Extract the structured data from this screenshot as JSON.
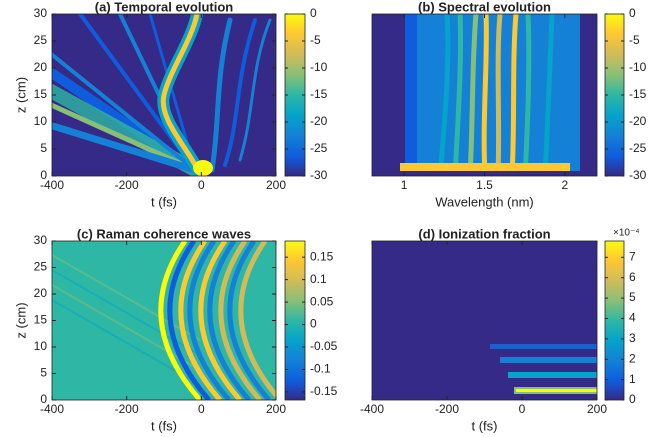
{
  "chart_data": [
    {
      "type": "heatmap",
      "title": "(a) Temporal evolution",
      "xlabel": "t (fs)",
      "ylabel": "z (cm)",
      "xlim": [
        -400,
        200
      ],
      "xticks": [
        -400,
        -200,
        0,
        200
      ],
      "ylim": [
        0,
        30
      ],
      "yticks": [
        0,
        5,
        10,
        15,
        20,
        25,
        30
      ],
      "clim": [
        -30,
        0
      ],
      "cticks": [
        -30,
        -25,
        -20,
        -15,
        -10,
        -5,
        0
      ]
    },
    {
      "type": "heatmap",
      "title": "(b) Spectral evolution",
      "xlabel": "Wavelength (nm)",
      "xlim": [
        0.8,
        2.2
      ],
      "xticks": [
        1,
        1.5,
        2
      ],
      "ylim": [
        0,
        30
      ],
      "clim": [
        -30,
        0
      ],
      "cticks": [
        -30,
        -25,
        -20,
        -15,
        -10,
        -5,
        0
      ]
    },
    {
      "type": "heatmap",
      "title": "(c) Raman coherence waves",
      "xlabel": "t (fs)",
      "ylabel": "z (cm)",
      "xlim": [
        -400,
        200
      ],
      "xticks": [
        -400,
        -200,
        0,
        200
      ],
      "ylim": [
        0,
        30
      ],
      "yticks": [
        0,
        5,
        10,
        15,
        20,
        25,
        30
      ],
      "clim": [
        -0.168,
        0.186
      ],
      "cticks": [
        -0.15,
        -0.1,
        -0.05,
        0,
        0.05,
        0.1,
        0.15
      ]
    },
    {
      "type": "heatmap",
      "title": "(d) Ionization fraction",
      "xlabel": "t (fs)",
      "xlim": [
        -400,
        200
      ],
      "xticks": [
        -400,
        -200,
        0,
        200
      ],
      "ylim": [
        0,
        30
      ],
      "clim": [
        0,
        7.8
      ],
      "cticks": [
        0,
        1,
        2,
        3,
        4,
        5,
        6,
        7
      ],
      "colorbar_exponent": "×10⁻⁴"
    }
  ]
}
